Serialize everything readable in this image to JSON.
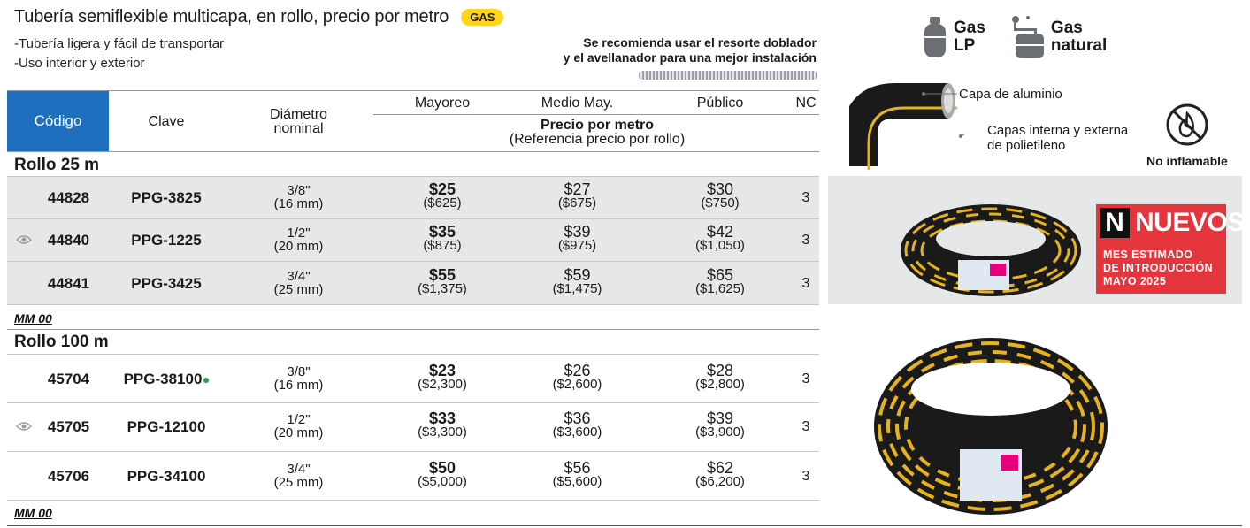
{
  "header": {
    "title": "Tubería semiflexible multicapa, en rollo, precio por metro",
    "badge": "GAS",
    "bullets": [
      "-Tubería ligera y fácil de transportar",
      "-Uso interior y exterior"
    ],
    "recommendation_line1": "Se recomienda usar el resorte doblador",
    "recommendation_line2": "y el avellanador para una mejor instalación"
  },
  "gas_types": [
    {
      "icon": "gas-cylinder-icon",
      "line1": "Gas",
      "line2": "LP"
    },
    {
      "icon": "gas-meter-icon",
      "line1": "Gas",
      "line2": "natural"
    }
  ],
  "table_header": {
    "codigo": "Código",
    "clave": "Clave",
    "diametro_line1": "Diámetro",
    "diametro_line2": "nominal",
    "mayoreo": "Mayoreo",
    "medio_may": "Medio May.",
    "publico": "Público",
    "nc": "NC",
    "precio_por_metro": "Precio por metro",
    "referencia": "(Referencia precio por rollo)"
  },
  "features": {
    "layer_outer": "Capa de aluminio",
    "layer_inner_line1": "Capas interna y externa",
    "layer_inner_line2": "de polietileno",
    "non_flammable": "No inflamable"
  },
  "sections": [
    {
      "title": "Rollo 25 m",
      "badge": "MM 00",
      "rows": [
        {
          "code": "44828",
          "clave": "PPG-3825",
          "dia_frac": "3/8\"",
          "dia_mm": "(16 mm)",
          "mayoreo": "$25",
          "mayoreo_roll": "($625)",
          "medio": "$27",
          "medio_roll": "($675)",
          "publico": "$30",
          "publico_roll": "($750)",
          "nc": "3",
          "eye": false,
          "dot": false
        },
        {
          "code": "44840",
          "clave": "PPG-1225",
          "dia_frac": "1/2\"",
          "dia_mm": "(20 mm)",
          "mayoreo": "$35",
          "mayoreo_roll": "($875)",
          "medio": "$39",
          "medio_roll": "($975)",
          "publico": "$42",
          "publico_roll": "($1,050)",
          "nc": "3",
          "eye": true,
          "dot": false
        },
        {
          "code": "44841",
          "clave": "PPG-3425",
          "dia_frac": "3/4\"",
          "dia_mm": "(25 mm)",
          "mayoreo": "$55",
          "mayoreo_roll": "($1,375)",
          "medio": "$59",
          "medio_roll": "($1,475)",
          "publico": "$65",
          "publico_roll": "($1,625)",
          "nc": "3",
          "eye": false,
          "dot": false
        }
      ]
    },
    {
      "title": "Rollo 100 m",
      "badge": "MM 00",
      "rows": [
        {
          "code": "45704",
          "clave": "PPG-38100",
          "dia_frac": "3/8\"",
          "dia_mm": "(16 mm)",
          "mayoreo": "$23",
          "mayoreo_roll": "($2,300)",
          "medio": "$26",
          "medio_roll": "($2,600)",
          "publico": "$28",
          "publico_roll": "($2,800)",
          "nc": "3",
          "eye": false,
          "dot": true
        },
        {
          "code": "45705",
          "clave": "PPG-12100",
          "dia_frac": "1/2\"",
          "dia_mm": "(20 mm)",
          "mayoreo": "$33",
          "mayoreo_roll": "($3,300)",
          "medio": "$36",
          "medio_roll": "($3,600)",
          "publico": "$39",
          "publico_roll": "($3,900)",
          "nc": "3",
          "eye": true,
          "dot": false
        },
        {
          "code": "45706",
          "clave": "PPG-34100",
          "dia_frac": "3/4\"",
          "dia_mm": "(25 mm)",
          "mayoreo": "$50",
          "mayoreo_roll": "($5,000)",
          "medio": "$56",
          "medio_roll": "($5,600)",
          "publico": "$62",
          "publico_roll": "($6,200)",
          "nc": "3",
          "eye": false,
          "dot": false
        }
      ]
    }
  ],
  "nuevos": {
    "letter": "N",
    "word": "NUEVOS",
    "line1": "MES ESTIMADO",
    "line2": "DE INTRODUCCIÓN",
    "line3": "MAYO 2025"
  },
  "colors": {
    "codigo_header": "#1f6fbf",
    "badge_gas": "#ffd41f",
    "nuevos": "#e3353b",
    "band": "#e6e7e9",
    "dot": "#1aa34a"
  }
}
